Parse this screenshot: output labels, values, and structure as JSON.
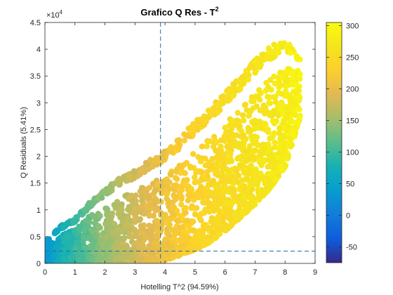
{
  "chart_data": {
    "type": "scatter",
    "title": "Grafico Q Res - T",
    "title_superscript": "2",
    "xlabel": "Hotelling T^2 (94.59%)",
    "ylabel": "Q Residuals (5.41%)",
    "xlim": [
      0,
      9
    ],
    "ylim": [
      0,
      45000
    ],
    "x_ticks": [
      0,
      1,
      2,
      3,
      4,
      5,
      6,
      7,
      8,
      9
    ],
    "y_ticks": [
      0,
      5000,
      10000,
      15000,
      20000,
      25000,
      30000,
      35000,
      40000,
      45000
    ],
    "y_tick_labels": [
      "0",
      "0.5",
      "1",
      "1.5",
      "2",
      "2.5",
      "3",
      "3.5",
      "4",
      "4.5"
    ],
    "y_exponent_label": "×10",
    "y_exponent_power": "4",
    "colormap": "parula",
    "colorbar": {
      "range": [
        -75,
        305
      ],
      "ticks": [
        -50,
        0,
        50,
        100,
        150,
        200,
        250,
        300
      ],
      "tick_labels": [
        "-50",
        "0",
        "50",
        "100",
        "150",
        "200",
        "250",
        "300"
      ]
    },
    "limit_lines": {
      "t2_limit_x": 3.85,
      "q_limit_y": 2300,
      "color": "#1f6fa8",
      "style": "dashed"
    },
    "point_color_variable": "approximately increases with Hotelling T^2",
    "envelope_samples": [
      {
        "x": 0.1,
        "y_min": 0,
        "y_max": 4500,
        "color": 35
      },
      {
        "x": 0.5,
        "y_min": 0,
        "y_max": 7000,
        "color": 70
      },
      {
        "x": 1.0,
        "y_min": 0,
        "y_max": 8500,
        "color": 95
      },
      {
        "x": 1.5,
        "y_min": 0,
        "y_max": 11500,
        "color": 125
      },
      {
        "x": 2.0,
        "y_min": 0,
        "y_max": 14000,
        "color": 145
      },
      {
        "x": 2.5,
        "y_min": 0,
        "y_max": 16000,
        "color": 165
      },
      {
        "x": 3.0,
        "y_min": 0,
        "y_max": 17500,
        "color": 180
      },
      {
        "x": 3.5,
        "y_min": 0,
        "y_max": 19500,
        "color": 195
      },
      {
        "x": 4.0,
        "y_min": 500,
        "y_max": 21000,
        "color": 210
      },
      {
        "x": 4.5,
        "y_min": 1500,
        "y_max": 23500,
        "color": 225
      },
      {
        "x": 5.0,
        "y_min": 2500,
        "y_max": 26500,
        "color": 235
      },
      {
        "x": 5.5,
        "y_min": 4000,
        "y_max": 29000,
        "color": 245
      },
      {
        "x": 6.0,
        "y_min": 6000,
        "y_max": 32000,
        "color": 250
      },
      {
        "x": 6.5,
        "y_min": 8500,
        "y_max": 35000,
        "color": 258
      },
      {
        "x": 7.0,
        "y_min": 11000,
        "y_max": 38000,
        "color": 265
      },
      {
        "x": 7.5,
        "y_min": 14000,
        "y_max": 40500,
        "color": 272
      },
      {
        "x": 8.0,
        "y_min": 18000,
        "y_max": 42000,
        "color": 280
      },
      {
        "x": 8.5,
        "y_min": 27000,
        "y_max": 38500,
        "color": 290
      }
    ]
  }
}
